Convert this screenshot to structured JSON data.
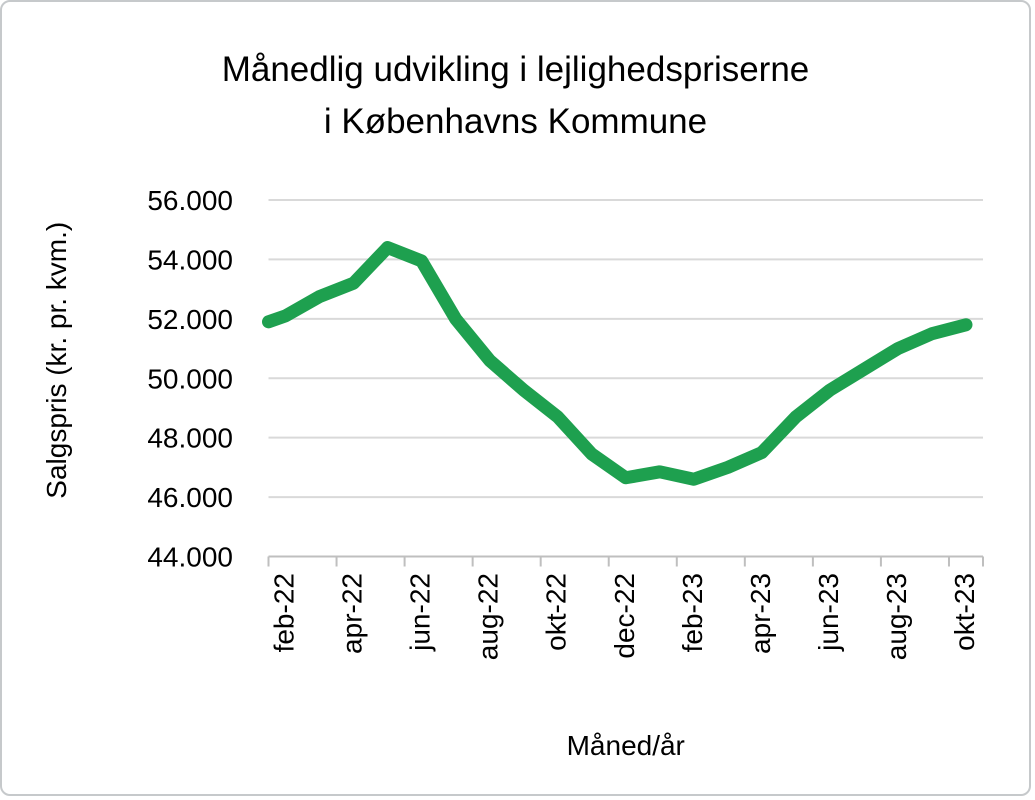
{
  "title": {
    "line1": "Månedlig udvikling i lejlighedspriserne",
    "line2": "i Københavns Kommune"
  },
  "y_axis": {
    "title": "Salgspris (kr. pr. kvm.)",
    "tick_labels": [
      "56.000",
      "54.000",
      "52.000",
      "50.000",
      "48.000",
      "46.000",
      "44.000"
    ]
  },
  "x_axis": {
    "title": "Måned/år",
    "tick_labels": [
      "feb-22",
      "apr-22",
      "jun-22",
      "aug-22",
      "okt-22",
      "dec-22",
      "feb-23",
      "apr-23",
      "jun-23",
      "aug-23",
      "okt-23"
    ]
  },
  "colors": {
    "line": "#1ea04f",
    "gridline": "#d9d9d9",
    "axis": "#bfbfbf",
    "text": "#000000",
    "frame_border": "#c6c9cb",
    "background": "#ffffff"
  },
  "chart_data": {
    "type": "line",
    "title": "Månedlig udvikling i lejlighedspriserne i Københavns Kommune",
    "xlabel": "Måned/år",
    "ylabel": "Salgspris (kr. pr. kvm.)",
    "ylim": [
      44000,
      56000
    ],
    "y_tick_step": 2000,
    "grid": true,
    "legend": false,
    "categories": [
      "feb-22",
      "mar-22",
      "apr-22",
      "maj-22",
      "jun-22",
      "jul-22",
      "aug-22",
      "sep-22",
      "okt-22",
      "nov-22",
      "dec-22",
      "jan-23",
      "feb-23",
      "mar-23",
      "apr-23",
      "maj-23",
      "jun-23",
      "jul-23",
      "aug-23",
      "sep-23",
      "okt-23"
    ],
    "values": [
      52100,
      52750,
      53200,
      54400,
      53950,
      52000,
      50600,
      49600,
      48700,
      47450,
      46650,
      46850,
      46600,
      47000,
      47500,
      48700,
      49600,
      50300,
      51000,
      51500,
      51800
    ],
    "x_label_every": 2,
    "left_edge_clip_value": 51900,
    "line_color": "#1ea04f",
    "line_width": 13
  }
}
